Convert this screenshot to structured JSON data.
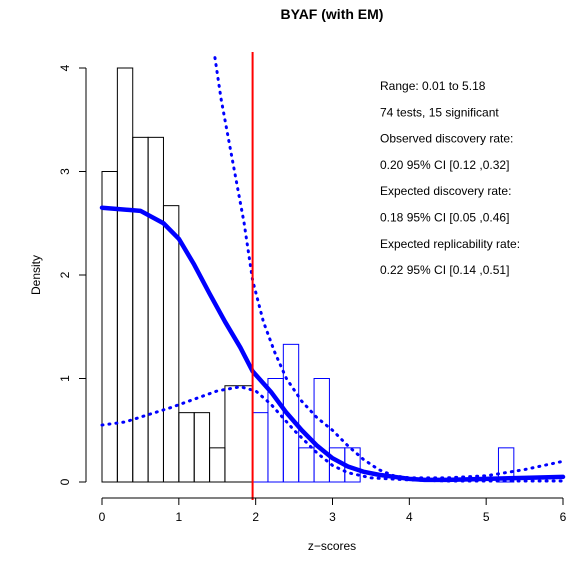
{
  "chart_data": {
    "type": "bar",
    "title": "BYAF (with EM)",
    "xlabel": "z−scores",
    "ylabel": "Density",
    "xlim": [
      0,
      6
    ],
    "ylim": [
      0,
      4
    ],
    "xticks": [
      "0",
      "1",
      "2",
      "3",
      "4",
      "5",
      "6"
    ],
    "yticks": [
      "0",
      "1",
      "2",
      "3",
      "4"
    ],
    "histogram_nonsignificant": {
      "color": "#000000",
      "bins": [
        {
          "x0": 0.0,
          "x1": 0.2,
          "density": 3.0
        },
        {
          "x0": 0.2,
          "x1": 0.4,
          "density": 4.0
        },
        {
          "x0": 0.4,
          "x1": 0.6,
          "density": 3.33
        },
        {
          "x0": 0.6,
          "x1": 0.8,
          "density": 3.33
        },
        {
          "x0": 0.8,
          "x1": 1.0,
          "density": 2.67
        },
        {
          "x0": 1.0,
          "x1": 1.2,
          "density": 0.67
        },
        {
          "x0": 1.2,
          "x1": 1.4,
          "density": 0.67
        },
        {
          "x0": 1.4,
          "x1": 1.6,
          "density": 0.33
        },
        {
          "x0": 1.6,
          "x1": 1.96,
          "density": 0.93
        }
      ]
    },
    "histogram_significant": {
      "color": "#0000ff",
      "bins": [
        {
          "x0": 1.96,
          "x1": 2.16,
          "density": 0.67
        },
        {
          "x0": 2.16,
          "x1": 2.36,
          "density": 1.0
        },
        {
          "x0": 2.36,
          "x1": 2.56,
          "density": 1.33
        },
        {
          "x0": 2.56,
          "x1": 2.76,
          "density": 0.33
        },
        {
          "x0": 2.76,
          "x1": 2.96,
          "density": 1.0
        },
        {
          "x0": 2.96,
          "x1": 3.16,
          "density": 0.33
        },
        {
          "x0": 3.16,
          "x1": 3.36,
          "density": 0.33
        },
        {
          "x0": 3.36,
          "x1": 3.56,
          "density": 0.0
        },
        {
          "x0": 5.16,
          "x1": 5.36,
          "density": 0.33
        }
      ]
    },
    "fitted_density": {
      "color": "#0000ff",
      "style": "solid",
      "x": [
        0,
        0.5,
        0.8,
        1.0,
        1.2,
        1.4,
        1.6,
        1.8,
        1.96,
        2.2,
        2.4,
        2.6,
        2.8,
        3.0,
        3.2,
        3.4,
        3.6,
        3.8,
        4.0,
        4.2,
        4.5,
        5.0,
        5.5,
        6.0
      ],
      "y": [
        2.65,
        2.62,
        2.5,
        2.35,
        2.1,
        1.82,
        1.55,
        1.3,
        1.07,
        0.87,
        0.67,
        0.5,
        0.35,
        0.23,
        0.15,
        0.1,
        0.07,
        0.05,
        0.03,
        0.02,
        0.02,
        0.03,
        0.04,
        0.05
      ]
    },
    "ci_upper": {
      "color": "#0000ff",
      "style": "dotted",
      "x": [
        1.47,
        1.55,
        1.65,
        1.75,
        1.85,
        1.96,
        2.1,
        2.25,
        2.4,
        2.6,
        2.8,
        3.0,
        3.2,
        3.4,
        3.6,
        3.8,
        4.0,
        4.2,
        4.5,
        5.0,
        5.5,
        6.0
      ],
      "y": [
        4.1,
        3.7,
        3.3,
        2.9,
        2.5,
        1.95,
        1.55,
        1.25,
        1.0,
        0.78,
        0.62,
        0.5,
        0.35,
        0.22,
        0.12,
        0.06,
        0.04,
        0.04,
        0.04,
        0.06,
        0.12,
        0.2
      ]
    },
    "ci_lower": {
      "color": "#0000ff",
      "style": "dotted",
      "x": [
        0,
        0.3,
        0.6,
        0.9,
        1.2,
        1.5,
        1.8,
        2.0,
        2.2,
        2.5,
        2.8,
        3.0,
        3.2,
        3.5,
        4.0,
        4.5,
        5.0,
        5.5,
        6.0
      ],
      "y": [
        0.55,
        0.58,
        0.65,
        0.72,
        0.8,
        0.88,
        0.92,
        0.88,
        0.75,
        0.5,
        0.28,
        0.16,
        0.09,
        0.04,
        0.02,
        0.01,
        0.01,
        0.01,
        0.01
      ]
    },
    "significance_line": {
      "x": 1.96,
      "color": "#ff0000"
    },
    "annotations": [
      "Range: 0.01 to 5.18",
      "74 tests, 15 significant",
      "Observed discovery rate:",
      "0.20  95% CI [0.12 ,0.32]",
      "Expected discovery rate:",
      "0.18  95% CI [0.05 ,0.46]",
      "Expected replicability rate:",
      "0.22  95% CI [0.14 ,0.51]"
    ]
  }
}
